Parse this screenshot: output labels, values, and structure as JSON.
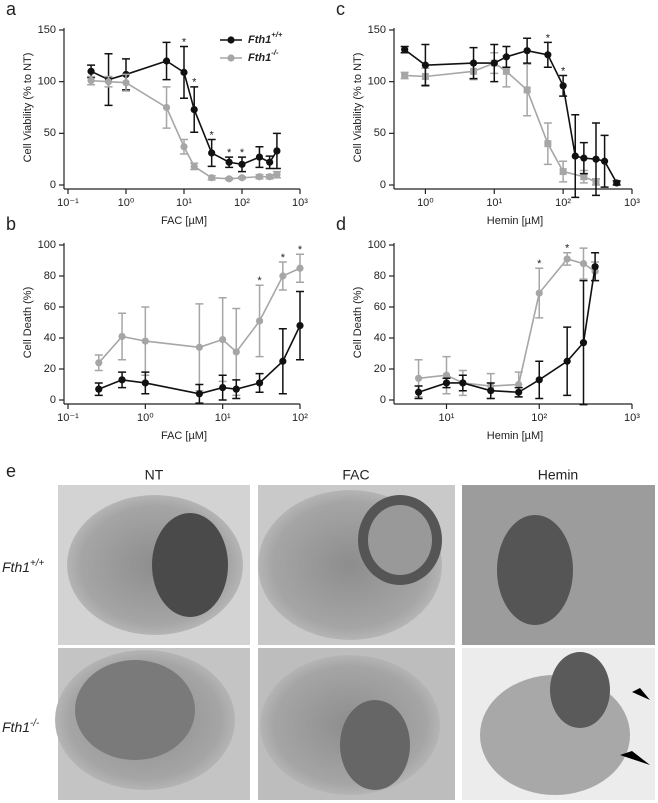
{
  "chart_data": [
    {
      "type": "line",
      "panel": "a",
      "xlabel": "FAC [µM]",
      "ylabel": "Cell Viability (% to NT)",
      "xscale": "log",
      "legend": "upper right",
      "xlim": [
        0.1,
        1000
      ],
      "xticks": [
        {
          "value": 0.1,
          "label": "10⁻¹"
        },
        {
          "value": 1,
          "label": "10⁰"
        },
        {
          "value": 10,
          "label": "10¹"
        },
        {
          "value": 100,
          "label": "10²"
        },
        {
          "value": 1000,
          "label": "10³"
        }
      ],
      "ylim": [
        0,
        150
      ],
      "yticks": [
        0,
        50,
        100,
        150
      ],
      "series": [
        {
          "name": "Fth1+/+",
          "color": "#111111",
          "marker": "circle",
          "x": [
            0.25,
            0.5,
            1,
            5,
            10,
            15,
            30,
            60,
            100,
            200,
            300,
            400
          ],
          "values": [
            110,
            102,
            107,
            120,
            109,
            73,
            31,
            22,
            20,
            27,
            22,
            33
          ],
          "errors": [
            6,
            25,
            15,
            18,
            25,
            22,
            13,
            5,
            7,
            10,
            6,
            17
          ]
        },
        {
          "name": "Fth1-/-",
          "color": "#a6a6a6",
          "marker": "circle",
          "x": [
            0.25,
            0.5,
            1,
            5,
            10,
            15,
            30,
            60,
            100,
            200,
            300,
            400
          ],
          "values": [
            101,
            100,
            99,
            75,
            37,
            18,
            7,
            6,
            7,
            8,
            8,
            10
          ],
          "errors": [
            4,
            5,
            8,
            20,
            7,
            3,
            2,
            1,
            1,
            2,
            2,
            3
          ]
        }
      ],
      "annotations": [
        {
          "text": "*",
          "x": 10
        },
        {
          "text": "*",
          "x": 15
        },
        {
          "text": "*",
          "x": 30
        },
        {
          "text": "*",
          "x": 60
        },
        {
          "text": "*",
          "x": 100
        }
      ]
    },
    {
      "type": "line",
      "panel": "b",
      "xlabel": "FAC [µM]",
      "ylabel": "Cell Death (%)",
      "xscale": "log",
      "xlim": [
        0.1,
        100
      ],
      "xticks": [
        {
          "value": 0.1,
          "label": "10⁻¹"
        },
        {
          "value": 1,
          "label": "10⁰"
        },
        {
          "value": 10,
          "label": "10¹"
        },
        {
          "value": 100,
          "label": "10²"
        }
      ],
      "ylim": [
        0,
        100
      ],
      "yticks": [
        0,
        20,
        40,
        60,
        80,
        100
      ],
      "series": [
        {
          "name": "Fth1-/-",
          "color": "#a6a6a6",
          "marker": "circle",
          "x": [
            0.25,
            0.5,
            1,
            5,
            10,
            15,
            30,
            60,
            100
          ],
          "values": [
            24,
            41,
            38,
            34,
            39,
            31,
            51,
            80,
            85
          ],
          "errors": [
            5,
            15,
            22,
            28,
            27,
            28,
            23,
            9,
            9
          ]
        },
        {
          "name": "Fth1+/+",
          "color": "#111111",
          "marker": "circle",
          "x": [
            0.25,
            0.5,
            1,
            5,
            10,
            15,
            30,
            60,
            100
          ],
          "values": [
            7,
            13,
            11,
            4,
            8,
            7,
            11,
            25,
            48
          ],
          "errors": [
            4,
            5,
            7,
            6,
            8,
            6,
            6,
            21,
            22
          ]
        }
      ],
      "annotations": [
        {
          "text": "*",
          "x": 30
        },
        {
          "text": "*",
          "x": 60
        },
        {
          "text": "*",
          "x": 100
        }
      ]
    },
    {
      "type": "line",
      "panel": "c",
      "xlabel": "Hemin [µM]",
      "ylabel": "Cell Viability (% to NT)",
      "xscale": "log",
      "xlim": [
        0.4,
        1000
      ],
      "xticks": [
        {
          "value": 1,
          "label": "10⁰"
        },
        {
          "value": 10,
          "label": "10¹"
        },
        {
          "value": 100,
          "label": "10²"
        },
        {
          "value": 1000,
          "label": "10³"
        }
      ],
      "ylim": [
        0,
        150
      ],
      "yticks": [
        0,
        50,
        100,
        150
      ],
      "series": [
        {
          "name": "Fth1-/-",
          "color": "#a6a6a6",
          "marker": "square",
          "x": [
            0.5,
            1,
            5,
            10,
            15,
            30,
            60,
            100,
            200,
            300
          ],
          "values": [
            106,
            105,
            110,
            118,
            110,
            92,
            40,
            13,
            8,
            3
          ],
          "errors": [
            3,
            8,
            8,
            10,
            15,
            25,
            20,
            10,
            6,
            3
          ]
        },
        {
          "name": "Fth1+/+",
          "color": "#111111",
          "marker": "circle",
          "x": [
            0.5,
            1,
            5,
            10,
            15,
            30,
            60,
            100,
            150,
            200,
            300,
            400,
            600
          ],
          "values": [
            131,
            116,
            118,
            118,
            124,
            130,
            126,
            96,
            28,
            26,
            25,
            23,
            2
          ],
          "errors": [
            3,
            20,
            15,
            18,
            10,
            12,
            12,
            10,
            40,
            15,
            35,
            25,
            2
          ]
        }
      ],
      "annotations": [
        {
          "text": "*",
          "x": 60
        },
        {
          "text": "*",
          "x": 100
        }
      ]
    },
    {
      "type": "line",
      "panel": "d",
      "xlabel": "Hemin [µM]",
      "ylabel": "Cell Death (%)",
      "xscale": "log",
      "xlim": [
        3,
        1000
      ],
      "xticks": [
        {
          "value": 10,
          "label": "10¹"
        },
        {
          "value": 100,
          "label": "10²"
        },
        {
          "value": 1000,
          "label": "10³"
        }
      ],
      "ylim": [
        0,
        100
      ],
      "yticks": [
        0,
        20,
        40,
        60,
        80,
        100
      ],
      "series": [
        {
          "name": "Fth1-/-",
          "color": "#a6a6a6",
          "marker": "circle",
          "x": [
            5,
            10,
            15,
            30,
            60,
            100,
            200,
            300,
            400
          ],
          "values": [
            14,
            16,
            11,
            9,
            10,
            69,
            91,
            88,
            83
          ],
          "errors": [
            12,
            12,
            8,
            8,
            8,
            16,
            4,
            10,
            6
          ]
        },
        {
          "name": "Fth1+/+",
          "color": "#111111",
          "marker": "circle",
          "x": [
            5,
            10,
            15,
            30,
            60,
            100,
            200,
            300,
            400
          ],
          "values": [
            5,
            11,
            11,
            6,
            5,
            13,
            25,
            37,
            86
          ],
          "errors": [
            4,
            3,
            5,
            5,
            3,
            12,
            22,
            40,
            9
          ]
        }
      ],
      "annotations": [
        {
          "text": "*",
          "x": 100
        },
        {
          "text": "*",
          "x": 200
        }
      ]
    }
  ],
  "panel_e": {
    "panel": "e",
    "columns": [
      "NT",
      "FAC",
      "Hemin"
    ],
    "rows": [
      "Fth1+/+",
      "Fth1-/-"
    ]
  }
}
